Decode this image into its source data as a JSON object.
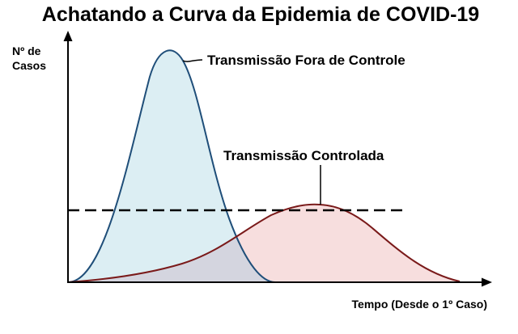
{
  "title": "Achatando a Curva da Epidemia de COVID-19",
  "y_axis_label": {
    "line1": "Nº de",
    "line2": "Casos"
  },
  "x_axis_label": "Tempo (Desde o 1º Caso)",
  "curves": {
    "uncontrolled": {
      "label": "Transmissão Fora de Controle",
      "stroke": "#1f4e79",
      "fill": "#dceef3"
    },
    "controlled": {
      "label": "Transmissão Controlada",
      "stroke": "#7a1a1a",
      "fill": "#f7dede"
    },
    "overlap_fill": "#d4d5df"
  },
  "capacity_line": {
    "style": "dashed",
    "color": "#000000"
  }
}
